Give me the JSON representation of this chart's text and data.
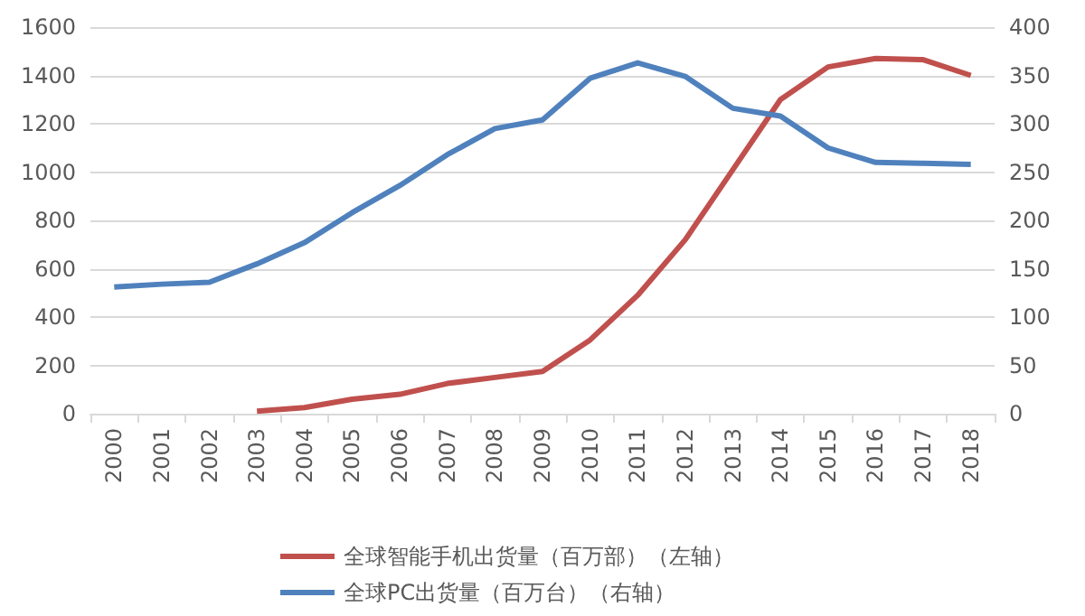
{
  "chart_data": {
    "type": "line",
    "categories": [
      "2000",
      "2001",
      "2002",
      "2003",
      "2004",
      "2005",
      "2006",
      "2007",
      "2008",
      "2009",
      "2010",
      "2011",
      "2012",
      "2013",
      "2014",
      "2015",
      "2016",
      "2017",
      "2018"
    ],
    "series": [
      {
        "name": "全球智能手机出货量（百万部）（左轴）",
        "color": "#c0504d",
        "values": [
          null,
          null,
          null,
          10,
          25,
          60,
          80,
          125,
          150,
          175,
          305,
          490,
          720,
          1010,
          1300,
          1435,
          1470,
          1465,
          1400
        ]
      },
      {
        "name": "全球PC出货量（百万台）（右轴）",
        "color": "#4f81bd",
        "axis": "y2",
        "values": [
          131,
          134,
          136,
          155,
          177,
          208,
          236,
          268,
          295,
          304,
          347,
          363,
          349,
          316,
          308,
          275,
          260,
          259,
          258
        ]
      }
    ],
    "ylim": [
      0,
      1600
    ],
    "yticks": [
      0,
      200,
      400,
      600,
      800,
      1000,
      1200,
      1400,
      1600
    ],
    "y2lim": [
      0,
      400
    ],
    "y2ticks": [
      0,
      50,
      100,
      150,
      200,
      250,
      300,
      350,
      400
    ],
    "grid": "y",
    "legend": "bottom",
    "marker": "none",
    "line_style": "solid"
  }
}
